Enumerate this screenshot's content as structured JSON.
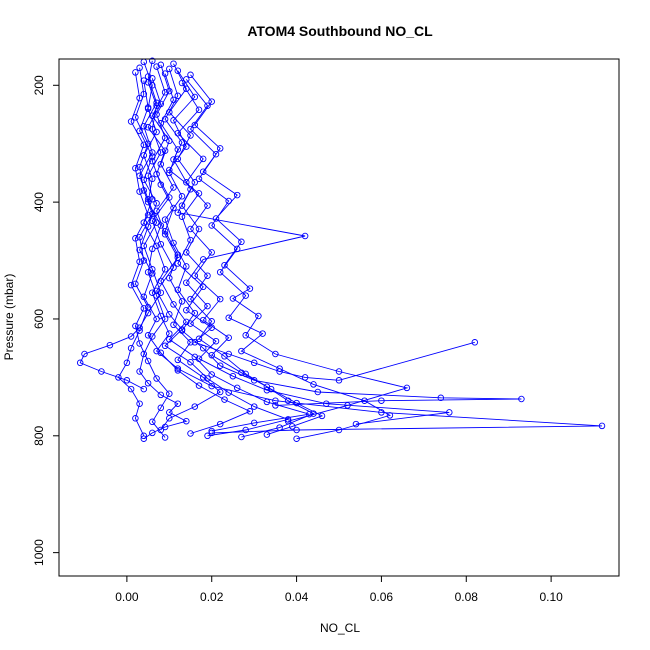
{
  "chart_data": {
    "type": "line",
    "title": "ATOM4 Southbound NO_CL",
    "xlabel": "NO_CL",
    "ylabel": "Pressure (mbar)",
    "xlim": [
      -0.016,
      0.116
    ],
    "ylim": [
      1040,
      155
    ],
    "y_inverted": true,
    "x_ticks": [
      0.0,
      0.02,
      0.04,
      0.06,
      0.08,
      0.1
    ],
    "x_tick_labels": [
      "0.00",
      "0.02",
      "0.04",
      "0.06",
      "0.08",
      "0.10"
    ],
    "y_ticks": [
      200,
      400,
      600,
      800,
      1000
    ],
    "y_tick_labels": [
      "200",
      "400",
      "600",
      "800",
      "1000"
    ],
    "grid": false,
    "legend": "none",
    "marker": "open-circle",
    "color": "#0000ff",
    "series": [
      {
        "x": [
          0.004,
          0.006,
          0.005,
          0.007,
          0.004,
          0.006,
          0.005,
          0.008,
          0.006,
          0.005,
          0.007,
          0.009,
          0.006,
          0.004,
          0.003,
          0.005,
          0.008,
          0.012,
          0.01,
          0.014,
          0.009,
          0.006,
          0.004
        ],
        "y": [
          160,
          200,
          240,
          280,
          320,
          360,
          400,
          440,
          480,
          520,
          560,
          600,
          630,
          660,
          690,
          710,
          730,
          745,
          760,
          775,
          785,
          795,
          805
        ]
      },
      {
        "x": [
          0.008,
          0.01,
          0.007,
          0.009,
          0.006,
          0.008,
          0.011,
          0.009,
          0.012,
          0.01,
          0.013,
          0.011,
          0.015,
          0.012,
          0.018,
          0.022,
          0.016,
          0.01,
          0.008
        ],
        "y": [
          165,
          210,
          250,
          290,
          330,
          370,
          410,
          450,
          490,
          530,
          570,
          610,
          640,
          670,
          700,
          725,
          750,
          770,
          790
        ]
      },
      {
        "x": [
          0.003,
          0.004,
          0.002,
          0.005,
          0.003,
          0.004,
          0.006,
          0.003,
          0.004,
          0.002,
          0.005,
          0.003,
          0.001,
          0.0,
          -0.002,
          0.001,
          0.003,
          0.002,
          0.004
        ],
        "y": [
          170,
          215,
          255,
          300,
          340,
          380,
          420,
          460,
          500,
          540,
          580,
          620,
          650,
          675,
          700,
          720,
          745,
          770,
          800
        ]
      },
      {
        "x": [
          0.012,
          0.016,
          0.011,
          0.014,
          0.01,
          0.017,
          0.013,
          0.015,
          0.012,
          0.018,
          0.014,
          0.02,
          0.016,
          0.024,
          0.03,
          0.036,
          0.042,
          0.05,
          0.082
        ],
        "y": [
          175,
          220,
          260,
          305,
          345,
          385,
          425,
          465,
          505,
          545,
          585,
          615,
          640,
          660,
          675,
          690,
          700,
          705,
          640
        ]
      },
      {
        "x": [
          0.006,
          0.005,
          0.007,
          0.006,
          0.008,
          0.005,
          0.006,
          0.004,
          0.007,
          0.009,
          0.006,
          0.008,
          0.01,
          0.007,
          0.012,
          0.02,
          0.035,
          0.06,
          0.112,
          0.04,
          0.02
        ],
        "y": [
          158,
          195,
          235,
          275,
          315,
          355,
          395,
          435,
          475,
          515,
          555,
          595,
          625,
          655,
          685,
          715,
          740,
          760,
          783,
          790,
          795
        ]
      },
      {
        "x": [
          0.009,
          0.011,
          0.008,
          0.012,
          0.01,
          0.013,
          0.009,
          0.011,
          0.014,
          0.012,
          0.016,
          0.013,
          0.018,
          0.022,
          0.03,
          0.045,
          0.074,
          0.093,
          0.06,
          0.035
        ],
        "y": [
          180,
          225,
          265,
          310,
          350,
          390,
          430,
          470,
          510,
          550,
          590,
          620,
          650,
          680,
          705,
          725,
          735,
          737,
          740,
          748
        ]
      },
      {
        "x": [
          0.005,
          0.007,
          0.004,
          0.006,
          0.003,
          0.005,
          0.007,
          0.004,
          0.006,
          0.008,
          0.005,
          0.003,
          0.001,
          -0.004,
          -0.01,
          -0.011,
          -0.006,
          0.0,
          0.004
        ],
        "y": [
          185,
          230,
          270,
          315,
          355,
          395,
          435,
          475,
          515,
          555,
          590,
          615,
          630,
          645,
          660,
          675,
          690,
          705,
          720
        ]
      },
      {
        "x": [
          0.014,
          0.019,
          0.015,
          0.021,
          0.017,
          0.024,
          0.02,
          0.026,
          0.022,
          0.028,
          0.024,
          0.032,
          0.027,
          0.036,
          0.044,
          0.056,
          0.062,
          0.05,
          0.04
        ],
        "y": [
          190,
          235,
          275,
          318,
          360,
          398,
          440,
          480,
          520,
          560,
          598,
          625,
          655,
          685,
          712,
          740,
          765,
          790,
          805
        ]
      },
      {
        "x": [
          0.007,
          0.009,
          0.006,
          0.01,
          0.008,
          0.011,
          0.007,
          0.009,
          0.012,
          0.008,
          0.011,
          0.014,
          0.01,
          0.016,
          0.02,
          0.026,
          0.033,
          0.043,
          0.03,
          0.02
        ],
        "y": [
          168,
          212,
          252,
          295,
          335,
          375,
          415,
          455,
          495,
          535,
          575,
          605,
          635,
          665,
          695,
          718,
          742,
          763,
          778,
          792
        ]
      },
      {
        "x": [
          0.01,
          0.012,
          0.009,
          0.013,
          0.011,
          0.015,
          0.012,
          0.042,
          0.018,
          0.014,
          0.019,
          0.015,
          0.021,
          0.017,
          0.025,
          0.033,
          0.047,
          0.076,
          0.054
        ],
        "y": [
          172,
          218,
          258,
          298,
          327,
          378,
          418,
          458,
          498,
          538,
          578,
          608,
          638,
          668,
          698,
          722,
          745,
          760,
          780
        ]
      },
      {
        "x": [
          0.002,
          0.003,
          0.001,
          0.004,
          0.002,
          0.003,
          0.005,
          0.002,
          0.003,
          0.001,
          0.004,
          0.002,
          0.003,
          0.005,
          0.007,
          0.01,
          0.008,
          0.006,
          0.009
        ],
        "y": [
          178,
          222,
          262,
          302,
          342,
          382,
          422,
          462,
          502,
          542,
          582,
          612,
          642,
          672,
          702,
          728,
          752,
          776,
          803
        ]
      },
      {
        "x": [
          0.015,
          0.02,
          0.016,
          0.022,
          0.018,
          0.026,
          0.021,
          0.027,
          0.023,
          0.029,
          0.025,
          0.031,
          0.028,
          0.035,
          0.05,
          0.066,
          0.052,
          0.038
        ],
        "y": [
          182,
          228,
          268,
          308,
          348,
          388,
          428,
          468,
          508,
          548,
          565,
          595,
          628,
          660,
          690,
          718,
          748,
          775
        ]
      },
      {
        "x": [
          0.006,
          0.008,
          0.005,
          0.009,
          0.007,
          0.01,
          0.006,
          0.008,
          0.011,
          0.007,
          0.01,
          0.013,
          0.009,
          0.015,
          0.019,
          0.024,
          0.03,
          0.038,
          0.028,
          0.019
        ],
        "y": [
          188,
          232,
          272,
          312,
          352,
          392,
          432,
          472,
          512,
          552,
          592,
          618,
          646,
          674,
          702,
          726,
          750,
          772,
          790,
          800
        ]
      },
      {
        "x": [
          0.011,
          0.014,
          0.01,
          0.015,
          0.012,
          0.016,
          0.013,
          0.017,
          0.014,
          0.019,
          0.015,
          0.02,
          0.017,
          0.023,
          0.028,
          0.034,
          0.04,
          0.046,
          0.039,
          0.033
        ],
        "y": [
          163,
          206,
          246,
          286,
          326,
          366,
          406,
          446,
          486,
          526,
          566,
          604,
          634,
          664,
          694,
          720,
          744,
          766,
          784,
          798
        ]
      },
      {
        "x": [
          0.004,
          0.005,
          0.003,
          0.006,
          0.004,
          0.007,
          0.005,
          0.003,
          0.006,
          0.004,
          0.007,
          0.005,
          0.008,
          0.012,
          0.017,
          0.023,
          0.029,
          0.022,
          0.015
        ],
        "y": [
          192,
          238,
          278,
          322,
          362,
          402,
          442,
          482,
          522,
          562,
          600,
          628,
          658,
          688,
          714,
          738,
          758,
          780,
          796
        ]
      },
      {
        "x": [
          0.013,
          0.017,
          0.012,
          0.018,
          0.014,
          0.019,
          0.015,
          0.02,
          0.016,
          0.022,
          0.018,
          0.024,
          0.02,
          0.027,
          0.033,
          0.038,
          0.044,
          0.036,
          0.027
        ],
        "y": [
          196,
          242,
          282,
          326,
          366,
          406,
          446,
          486,
          526,
          566,
          602,
          632,
          662,
          692,
          716,
          740,
          762,
          786,
          802
        ]
      }
    ]
  }
}
